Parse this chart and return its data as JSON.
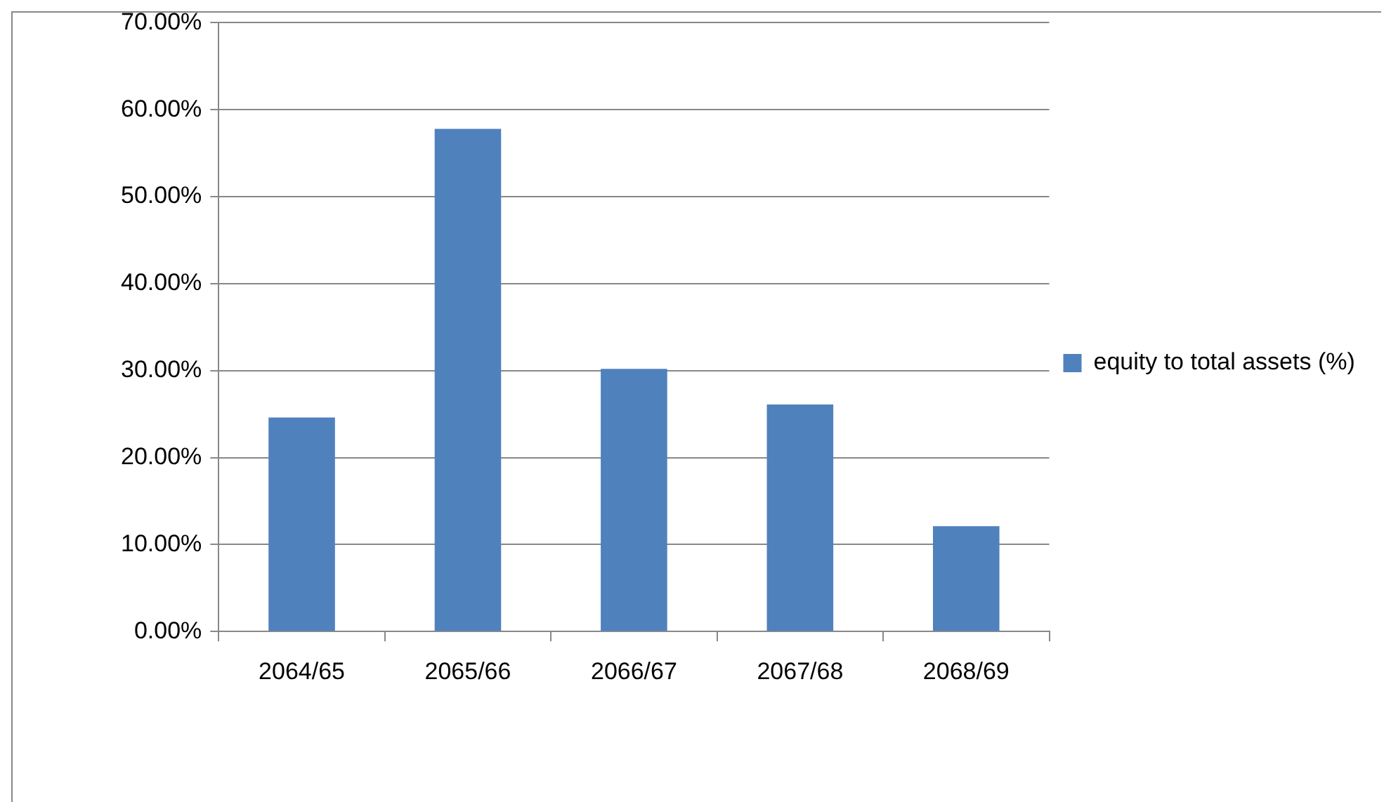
{
  "chart_data": {
    "type": "bar",
    "categories": [
      "2064/65",
      "2065/66",
      "2066/67",
      "2067/68",
      "2068/69"
    ],
    "series": [
      {
        "name": "equity to total assets (%)",
        "color": "#4f81bd",
        "values": [
          24.6,
          57.8,
          30.2,
          26.1,
          12.1
        ]
      }
    ],
    "ylim": [
      0,
      70
    ],
    "yticks": [
      {
        "value": 0,
        "label": "0.00%"
      },
      {
        "value": 10,
        "label": "10.00%"
      },
      {
        "value": 20,
        "label": "20.00%"
      },
      {
        "value": 30,
        "label": "30.00%"
      },
      {
        "value": 40,
        "label": "40.00%"
      },
      {
        "value": 50,
        "label": "50.00%"
      },
      {
        "value": 60,
        "label": "60.00%"
      },
      {
        "value": 70,
        "label": "70.00%"
      }
    ],
    "grid": "y",
    "legend": "right"
  }
}
